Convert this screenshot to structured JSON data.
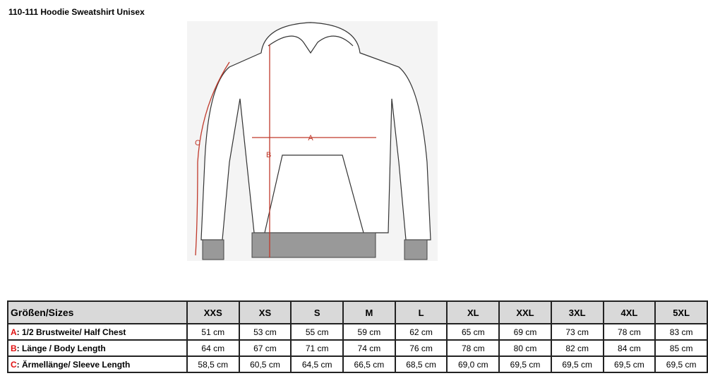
{
  "title": "110-111  Hoodie Sweatshirt Unisex",
  "drawing": {
    "labels": {
      "a": "A",
      "b": "B",
      "c": "C"
    },
    "arrow_color": "#c0392b"
  },
  "table": {
    "header_label": "Größen/Sizes",
    "sizes": [
      "XXS",
      "XS",
      "S",
      "M",
      "L",
      "XL",
      "XXL",
      "3XL",
      "4XL",
      "5XL"
    ],
    "rows": [
      {
        "key": "A",
        "label": ": 1/2 Brustweite/ Half Chest",
        "values": [
          "51 cm",
          "53 cm",
          "55 cm",
          "59 cm",
          "62 cm",
          "65 cm",
          "69 cm",
          "73 cm",
          "78 cm",
          "83 cm"
        ]
      },
      {
        "key": "B",
        "label": ": Länge / Body Length",
        "values": [
          "64 cm",
          "67 cm",
          "71 cm",
          "74 cm",
          "76 cm",
          "78 cm",
          "80 cm",
          "82 cm",
          "84 cm",
          "85 cm"
        ]
      },
      {
        "key": "C",
        "label": ": Ärmellänge/ Sleeve Length",
        "values": [
          "58,5 cm",
          "60,5 cm",
          "64,5 cm",
          "66,5 cm",
          "68,5 cm",
          "69,0 cm",
          "69,5 cm",
          "69,5 cm",
          "69,5 cm",
          "69,5 cm"
        ]
      }
    ]
  }
}
